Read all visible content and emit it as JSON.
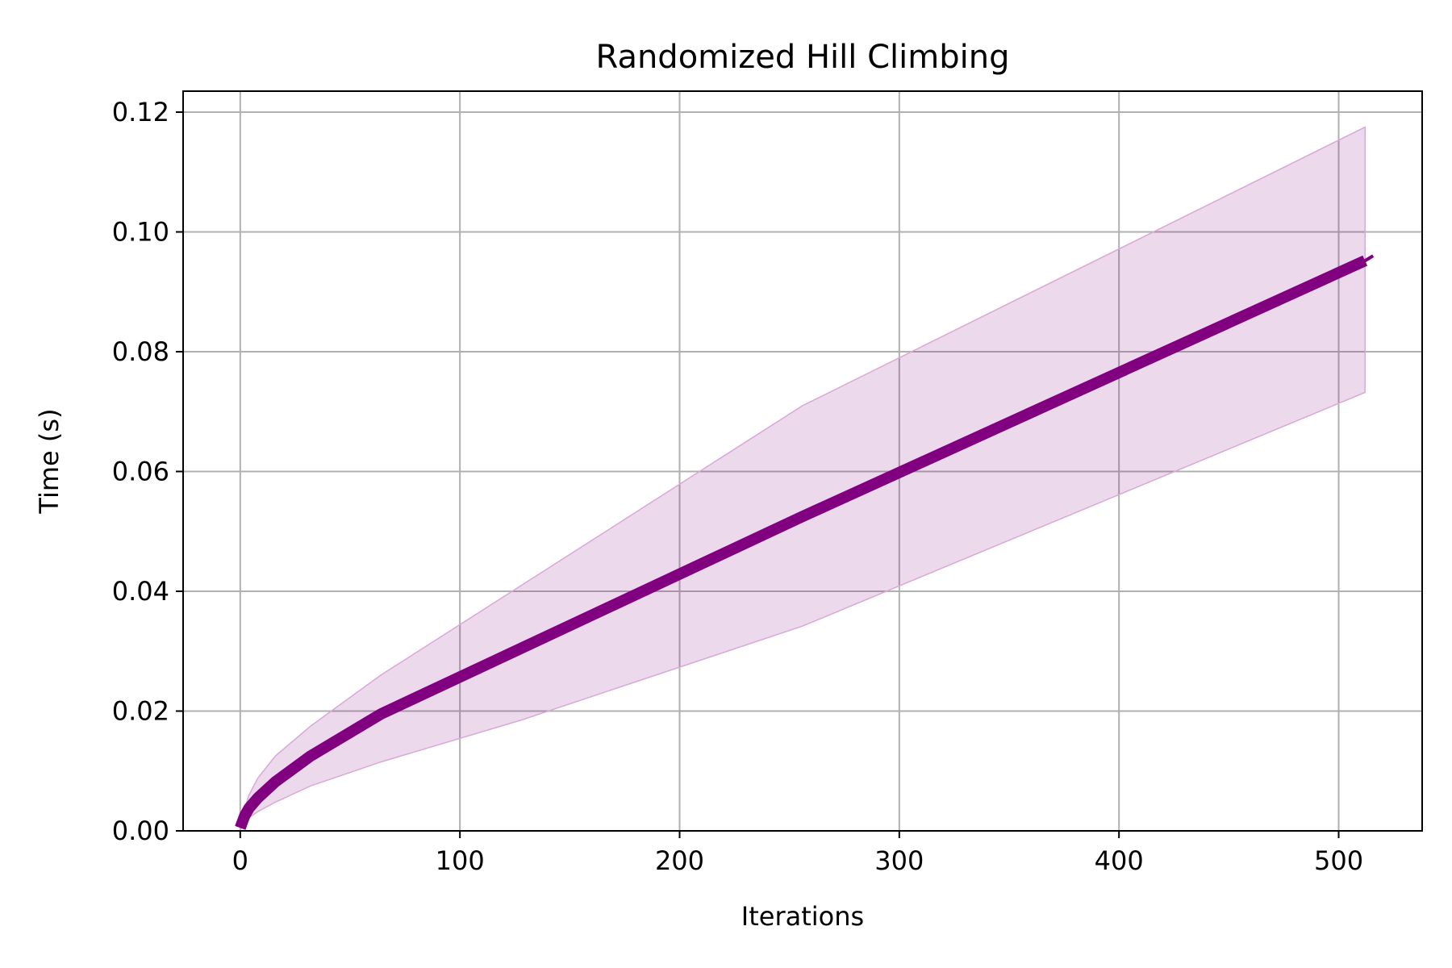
{
  "chart_data": {
    "type": "line",
    "title": "Randomized Hill Climbing",
    "xlabel": "Iterations",
    "ylabel": "Time (s)",
    "xlim": [
      -26,
      538
    ],
    "ylim": [
      0,
      0.1235
    ],
    "xticks": [
      0,
      100,
      200,
      300,
      400,
      500
    ],
    "xtick_labels": [
      "0",
      "100",
      "200",
      "300",
      "400",
      "500"
    ],
    "yticks": [
      0.0,
      0.02,
      0.04,
      0.06,
      0.08,
      0.1,
      0.12
    ],
    "ytick_labels": [
      "0.00",
      "0.02",
      "0.04",
      "0.06",
      "0.08",
      "0.10",
      "0.12"
    ],
    "grid": true,
    "colors": {
      "line": "#800080",
      "band_fill": "#800080",
      "band_fill_opacity": 0.15,
      "band_edge": "#d9a8d9",
      "grid": "#b0b0b0"
    },
    "series": [
      {
        "x": [
          0,
          1,
          2,
          4,
          8,
          16,
          32,
          64,
          128,
          256,
          512
        ],
        "mean": [
          0.0005,
          0.0015,
          0.0025,
          0.0038,
          0.0055,
          0.0082,
          0.0125,
          0.0195,
          0.0305,
          0.0525,
          0.0952
        ],
        "upper": [
          0.001,
          0.0025,
          0.0038,
          0.006,
          0.0088,
          0.0125,
          0.0175,
          0.026,
          0.041,
          0.071,
          0.1175
        ],
        "lower": [
          0.0001,
          0.0008,
          0.0014,
          0.0022,
          0.0032,
          0.0048,
          0.0075,
          0.0115,
          0.0185,
          0.0342,
          0.0732
        ]
      }
    ]
  }
}
